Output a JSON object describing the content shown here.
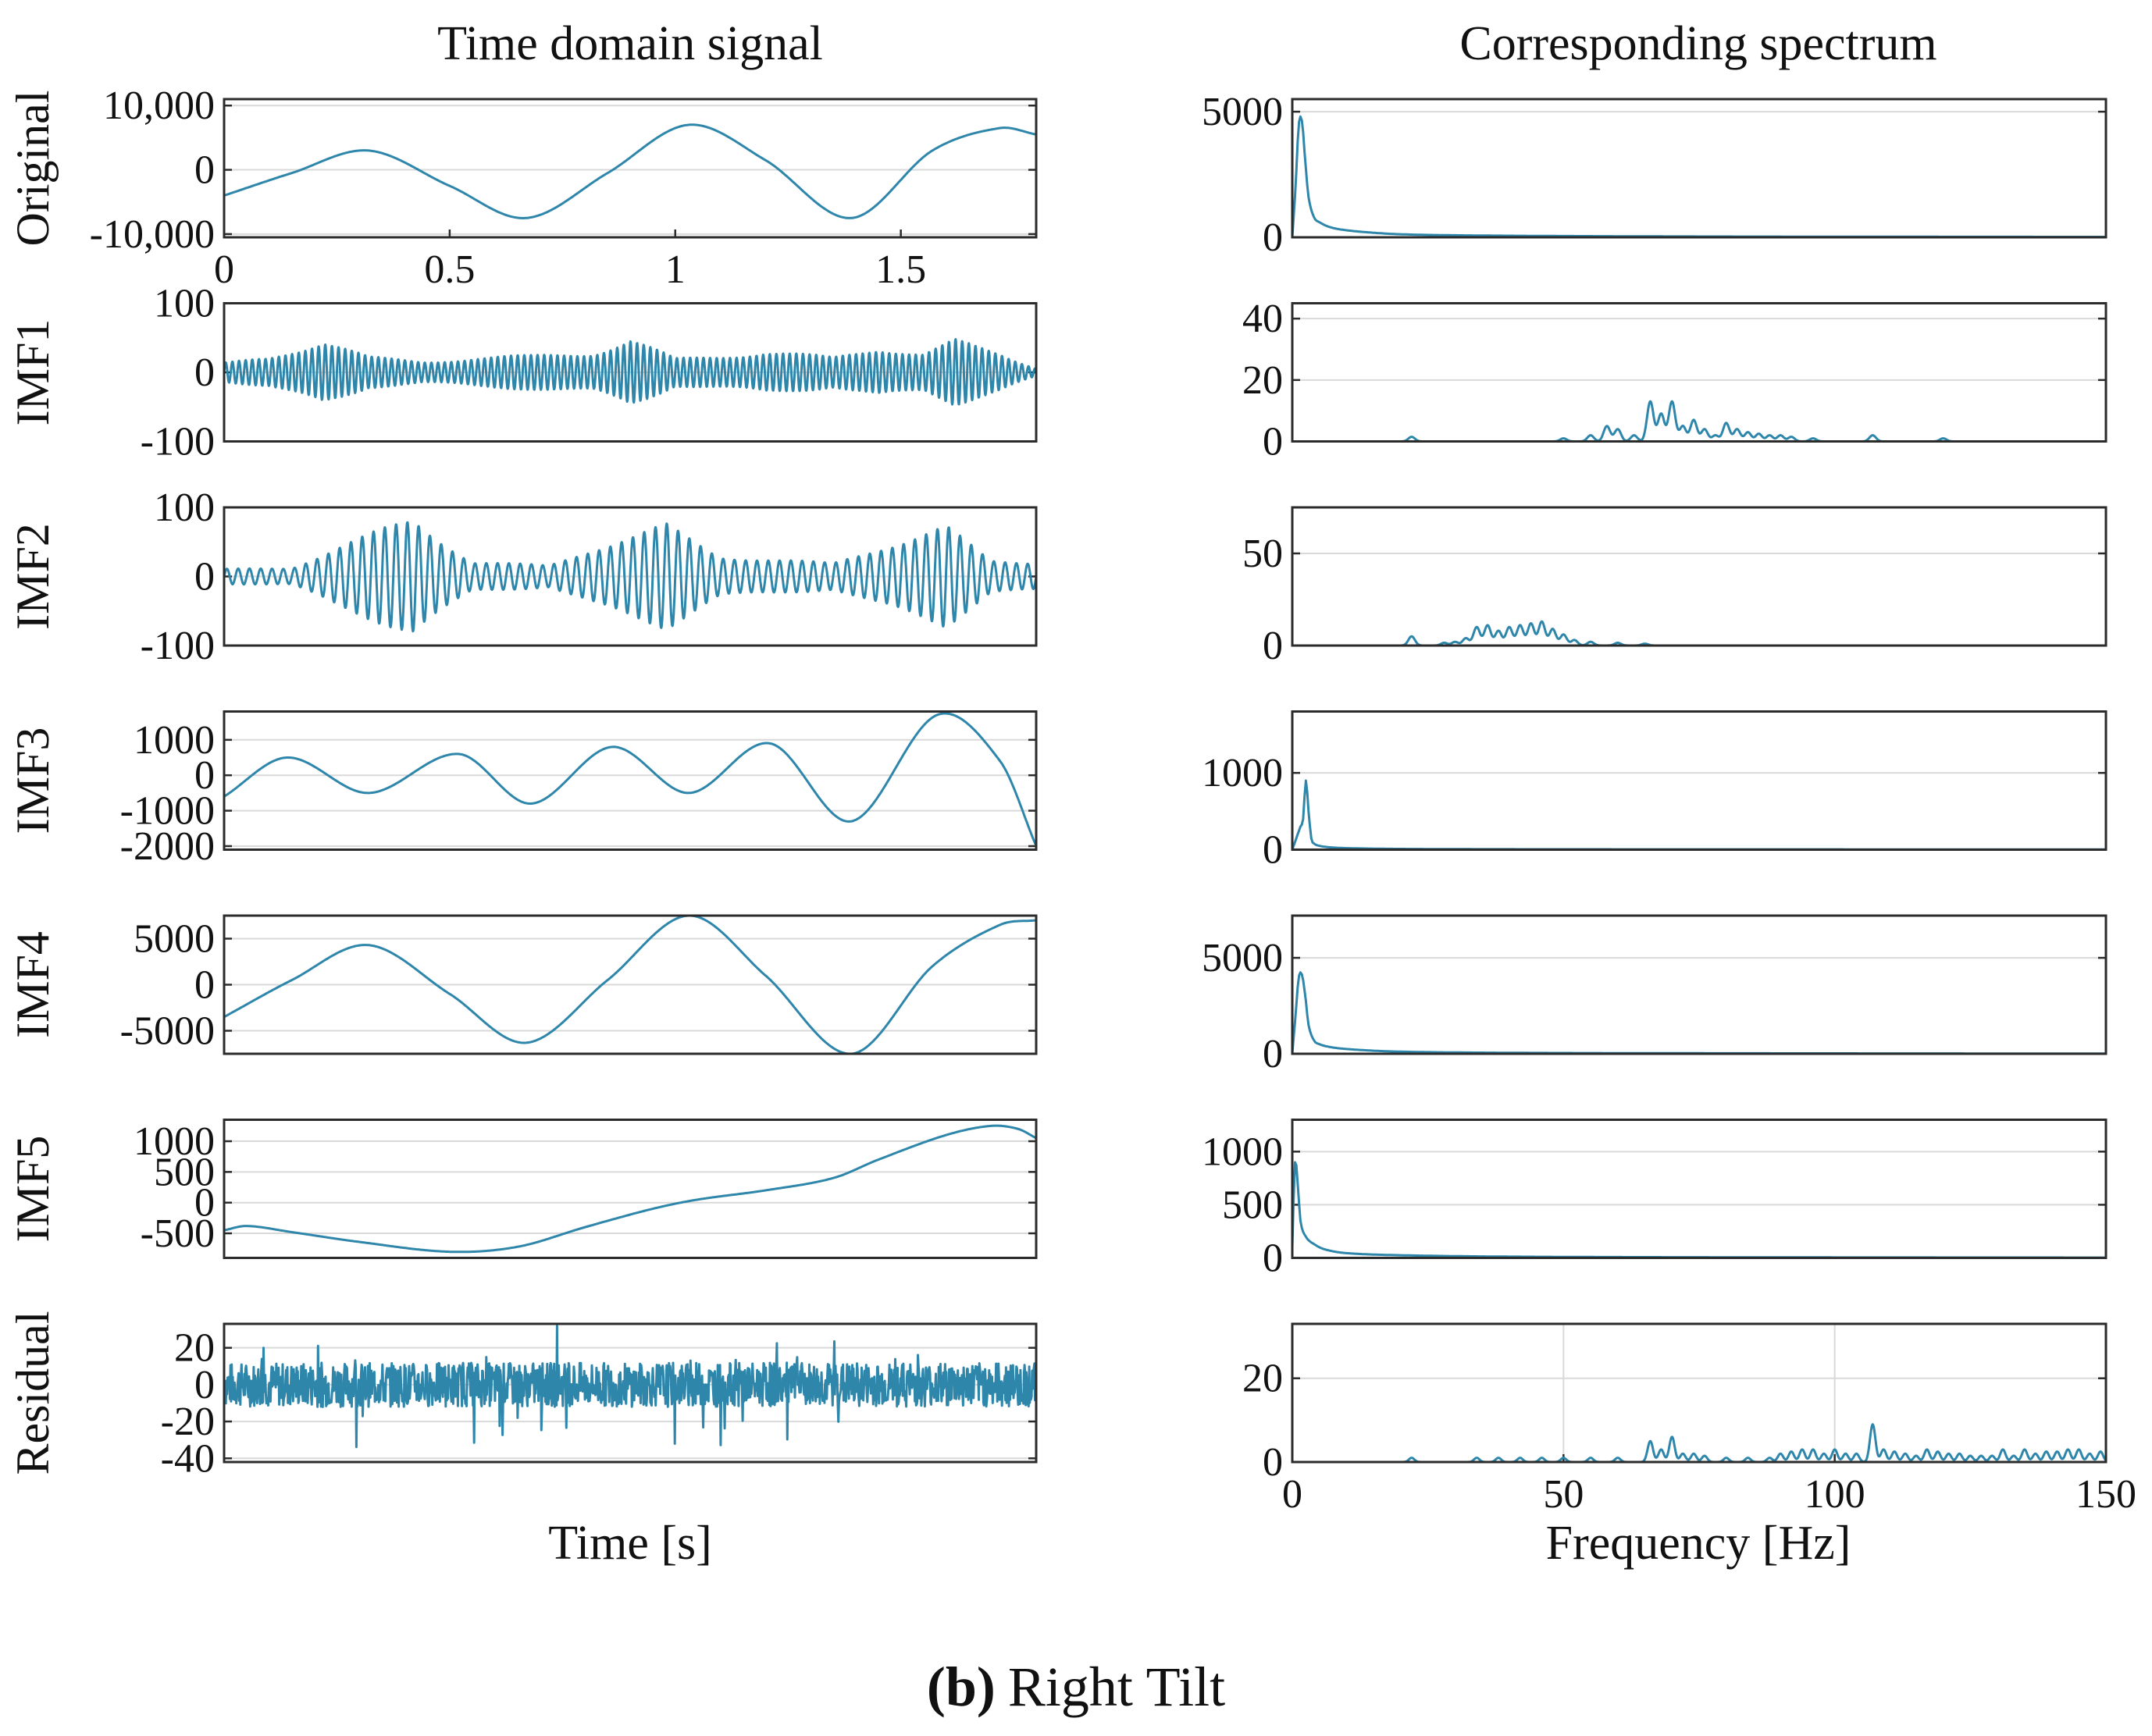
{
  "figure": {
    "left_title": "Time domain signal",
    "right_title": "Corresponding spectrum",
    "left_xlabel": "Time [s]",
    "right_xlabel": "Frequency [Hz]",
    "caption_label": "(b)",
    "caption_text": "Right Tilt",
    "line_color": "#2e86ab"
  },
  "chart_data": [
    {
      "type": "line",
      "panel": "time",
      "ylabel": "Original",
      "xlim": [
        0,
        1.8
      ],
      "ylim": [
        -10500,
        11000
      ],
      "grid": "horizontal",
      "yticks": [
        -10000,
        0,
        10000
      ],
      "ytick_labels": [
        "-10,000",
        "0",
        "10,000"
      ],
      "xticks": [
        0,
        0.5,
        1,
        1.5
      ],
      "xtick_labels": [
        "0",
        "0.5",
        "1",
        "1.5"
      ],
      "x": [
        0,
        0.15,
        0.32,
        0.5,
        0.67,
        0.85,
        1.03,
        1.2,
        1.39,
        1.57,
        1.72,
        1.8
      ],
      "y": [
        -4000,
        -500,
        3000,
        -2500,
        -7500,
        -500,
        7000,
        1500,
        -7500,
        3000,
        6500,
        5500
      ]
    },
    {
      "type": "line",
      "panel": "time",
      "ylabel": "IMF1",
      "xlim": [
        0,
        1.8
      ],
      "ylim": [
        -100,
        100
      ],
      "grid": "horizontal",
      "yticks": [
        -100,
        0,
        100
      ],
      "ytick_labels": [
        "-100",
        "0",
        "100"
      ],
      "signal": {
        "kind": "oscillation",
        "freq": 68,
        "envelope": [
          [
            0,
            12
          ],
          [
            0.1,
            20
          ],
          [
            0.22,
            45
          ],
          [
            0.32,
            20
          ],
          [
            0.44,
            15
          ],
          [
            0.56,
            20
          ],
          [
            0.68,
            22
          ],
          [
            0.82,
            28
          ],
          [
            0.9,
            45
          ],
          [
            1.0,
            18
          ],
          [
            1.2,
            28
          ],
          [
            1.35,
            20
          ],
          [
            1.45,
            35
          ],
          [
            1.55,
            25
          ],
          [
            1.62,
            42
          ],
          [
            1.72,
            26
          ],
          [
            1.8,
            6
          ]
        ],
        "mean": [
          [
            0,
            0
          ],
          [
            1.8,
            0
          ]
        ],
        "noise": 0.15
      }
    },
    {
      "type": "line",
      "panel": "time",
      "ylabel": "IMF2",
      "xlim": [
        0,
        1.8
      ],
      "ylim": [
        -100,
        100
      ],
      "grid": "horizontal",
      "yticks": [
        -100,
        0,
        100
      ],
      "ytick_labels": [
        "-100",
        "0",
        "100"
      ],
      "signal": {
        "kind": "oscillation",
        "freq": 40,
        "envelope": [
          [
            0,
            10
          ],
          [
            0.15,
            12
          ],
          [
            0.25,
            40
          ],
          [
            0.42,
            80
          ],
          [
            0.55,
            20
          ],
          [
            0.72,
            15
          ],
          [
            0.82,
            40
          ],
          [
            0.98,
            70
          ],
          [
            1.1,
            28
          ],
          [
            1.35,
            18
          ],
          [
            1.45,
            40
          ],
          [
            1.6,
            68
          ],
          [
            1.7,
            22
          ],
          [
            1.8,
            20
          ]
        ],
        "mean": [
          [
            0,
            0
          ],
          [
            1.8,
            0
          ]
        ],
        "noise": 0.1
      }
    },
    {
      "type": "line",
      "panel": "time",
      "ylabel": "IMF3",
      "xlim": [
        0,
        1.8
      ],
      "ylim": [
        -2100,
        1800
      ],
      "grid": "horizontal",
      "yticks": [
        -2000,
        -1000,
        0,
        1000
      ],
      "ytick_labels": [
        "-2000",
        "-1000",
        "0",
        "1000"
      ],
      "x": [
        0,
        0.14,
        0.32,
        0.52,
        0.68,
        0.86,
        1.03,
        1.21,
        1.39,
        1.58,
        1.72,
        1.8
      ],
      "y": [
        -600,
        500,
        -500,
        600,
        -800,
        800,
        -500,
        900,
        -1300,
        1700,
        400,
        -2000
      ]
    },
    {
      "type": "line",
      "panel": "time",
      "ylabel": "IMF4",
      "xlim": [
        0,
        1.8
      ],
      "ylim": [
        -7500,
        7500
      ],
      "grid": "horizontal",
      "yticks": [
        -5000,
        0,
        5000
      ],
      "ytick_labels": [
        "-5000",
        "0",
        "5000"
      ],
      "x": [
        0,
        0.15,
        0.32,
        0.5,
        0.67,
        0.85,
        1.03,
        1.2,
        1.39,
        1.57,
        1.72,
        1.8
      ],
      "y": [
        -3500,
        500,
        4300,
        -1000,
        -6300,
        500,
        7500,
        1000,
        -7500,
        2000,
        6500,
        7000
      ]
    },
    {
      "type": "line",
      "panel": "time",
      "ylabel": "IMF5",
      "xlim": [
        0,
        1.8
      ],
      "ylim": [
        -900,
        1350
      ],
      "grid": "horizontal",
      "yticks": [
        -500,
        0,
        500,
        1000
      ],
      "ytick_labels": [
        "-500",
        "0",
        "500",
        "1000"
      ],
      "x": [
        0,
        0.05,
        0.15,
        0.3,
        0.5,
        0.65,
        0.8,
        0.95,
        1.05,
        1.2,
        1.35,
        1.45,
        1.6,
        1.7,
        1.76,
        1.8
      ],
      "y": [
        -450,
        -380,
        -480,
        -640,
        -800,
        -720,
        -400,
        -100,
        50,
        200,
        400,
        700,
        1100,
        1250,
        1200,
        1050
      ]
    },
    {
      "type": "line",
      "panel": "time",
      "ylabel": "Residual",
      "xlim": [
        0,
        1.8
      ],
      "ylim": [
        -42,
        33
      ],
      "grid": "horizontal",
      "yticks": [
        -40,
        -20,
        0,
        20
      ],
      "ytick_labels": [
        "-40",
        "-20",
        "0",
        "20"
      ],
      "signal": {
        "kind": "noise",
        "amp": 12,
        "spikes": 28,
        "spike_amp": 22
      }
    },
    {
      "type": "line",
      "panel": "spectrum",
      "ylabel": "",
      "xlim": [
        0,
        150
      ],
      "ylim": [
        0,
        5500
      ],
      "grid": "horizontal",
      "yticks": [
        0,
        5000
      ],
      "ytick_labels": [
        "0",
        "5000"
      ],
      "x": [
        0,
        0.6,
        1.2,
        1.8,
        2.4,
        3,
        4,
        5,
        7,
        10,
        15,
        20,
        30,
        50,
        80,
        120,
        150
      ],
      "y": [
        0,
        2000,
        4500,
        4600,
        3000,
        1600,
        800,
        600,
        400,
        280,
        180,
        120,
        80,
        50,
        30,
        20,
        15
      ]
    },
    {
      "type": "line",
      "panel": "spectrum",
      "ylabel": "",
      "xlim": [
        0,
        150
      ],
      "ylim": [
        0,
        45
      ],
      "grid": "horizontal",
      "yticks": [
        0,
        20,
        40
      ],
      "ytick_labels": [
        "0",
        "20",
        "40"
      ],
      "peaks": [
        [
          22,
          1.5
        ],
        [
          50,
          1
        ],
        [
          55,
          2
        ],
        [
          58,
          5
        ],
        [
          60,
          4
        ],
        [
          63,
          2
        ],
        [
          66,
          13
        ],
        [
          68,
          9
        ],
        [
          70,
          13
        ],
        [
          72,
          5
        ],
        [
          74,
          7
        ],
        [
          76,
          4
        ],
        [
          78,
          2
        ],
        [
          80,
          6
        ],
        [
          82,
          4
        ],
        [
          84,
          3
        ],
        [
          86,
          2.5
        ],
        [
          88,
          2
        ],
        [
          90,
          2
        ],
        [
          92,
          1.5
        ],
        [
          96,
          1
        ],
        [
          107,
          2
        ],
        [
          120,
          1
        ]
      ],
      "peak_width": 0.6
    },
    {
      "type": "line",
      "panel": "spectrum",
      "ylabel": "",
      "xlim": [
        0,
        150
      ],
      "ylim": [
        0,
        75
      ],
      "grid": "horizontal",
      "yticks": [
        0,
        50
      ],
      "ytick_labels": [
        "0",
        "50"
      ],
      "peaks": [
        [
          22,
          5
        ],
        [
          28,
          1.5
        ],
        [
          30,
          2
        ],
        [
          32,
          4
        ],
        [
          34,
          10
        ],
        [
          36,
          11
        ],
        [
          38,
          8
        ],
        [
          40,
          10
        ],
        [
          42,
          11
        ],
        [
          44,
          12
        ],
        [
          46,
          13
        ],
        [
          48,
          9
        ],
        [
          50,
          6
        ],
        [
          52,
          3
        ],
        [
          55,
          2
        ],
        [
          60,
          1.5
        ],
        [
          65,
          1
        ]
      ],
      "peak_width": 0.6
    },
    {
      "type": "line",
      "panel": "spectrum",
      "ylabel": "",
      "xlim": [
        0,
        150
      ],
      "ylim": [
        0,
        1800
      ],
      "grid": "horizontal",
      "yticks": [
        0,
        1000
      ],
      "ytick_labels": [
        "0",
        "1000"
      ],
      "x": [
        0,
        1,
        1.5,
        2,
        2.5,
        3,
        3.5,
        4,
        5,
        7,
        10,
        20,
        50,
        150
      ],
      "y": [
        0,
        200,
        300,
        400,
        900,
        500,
        150,
        80,
        50,
        30,
        20,
        10,
        5,
        3
      ]
    },
    {
      "type": "line",
      "panel": "spectrum",
      "ylabel": "",
      "xlim": [
        0,
        150
      ],
      "ylim": [
        0,
        7200
      ],
      "grid": "horizontal",
      "yticks": [
        0,
        5000
      ],
      "ytick_labels": [
        "0",
        "5000"
      ],
      "x": [
        0,
        0.6,
        1.2,
        1.8,
        2.4,
        3,
        4,
        5,
        7,
        10,
        15,
        20,
        30,
        50,
        80,
        120,
        150
      ],
      "y": [
        0,
        2000,
        4000,
        4100,
        3000,
        1500,
        700,
        500,
        350,
        250,
        160,
        110,
        70,
        40,
        25,
        15,
        10
      ]
    },
    {
      "type": "line",
      "panel": "spectrum",
      "ylabel": "",
      "xlim": [
        0,
        150
      ],
      "ylim": [
        0,
        1300
      ],
      "grid": "horizontal",
      "yticks": [
        0,
        500,
        1000
      ],
      "ytick_labels": [
        "0",
        "500",
        "1000"
      ],
      "x": [
        0,
        0.5,
        1,
        1.5,
        2.5,
        4,
        6,
        10,
        20,
        40,
        80,
        150
      ],
      "y": [
        100,
        900,
        700,
        350,
        200,
        130,
        80,
        45,
        25,
        12,
        6,
        3
      ]
    },
    {
      "type": "line",
      "panel": "spectrum",
      "ylabel": "",
      "xlim": [
        0,
        150
      ],
      "ylim": [
        0,
        33
      ],
      "grid": "both",
      "yticks": [
        0,
        20
      ],
      "ytick_labels": [
        "0",
        "20"
      ],
      "xticks": [
        0,
        50,
        100,
        150
      ],
      "xtick_labels": [
        "0",
        "50",
        "100",
        "150"
      ],
      "peaks": [
        [
          22,
          1
        ],
        [
          34,
          1
        ],
        [
          38,
          1
        ],
        [
          42,
          1
        ],
        [
          46,
          1
        ],
        [
          50,
          1
        ],
        [
          55,
          1
        ],
        [
          60,
          1
        ],
        [
          66,
          5
        ],
        [
          68,
          3
        ],
        [
          70,
          6
        ],
        [
          72,
          2
        ],
        [
          74,
          2
        ],
        [
          76,
          1.5
        ],
        [
          80,
          1
        ],
        [
          84,
          1
        ],
        [
          88,
          1
        ],
        [
          90,
          2
        ],
        [
          92,
          2.5
        ],
        [
          94,
          3
        ],
        [
          96,
          3
        ],
        [
          98,
          2
        ],
        [
          100,
          3
        ],
        [
          102,
          2
        ],
        [
          104,
          2
        ],
        [
          107,
          9
        ],
        [
          109,
          3
        ],
        [
          111,
          2.5
        ],
        [
          113,
          2
        ],
        [
          115,
          1.5
        ],
        [
          117,
          3
        ],
        [
          119,
          2.5
        ],
        [
          121,
          2
        ],
        [
          123,
          2
        ],
        [
          125,
          1.5
        ],
        [
          127,
          1.5
        ],
        [
          129,
          1.5
        ],
        [
          131,
          3
        ],
        [
          133,
          1.5
        ],
        [
          135,
          3
        ],
        [
          137,
          2
        ],
        [
          139,
          2.5
        ],
        [
          141,
          2.5
        ],
        [
          143,
          3
        ],
        [
          145,
          3
        ],
        [
          147,
          2
        ],
        [
          149,
          2.5
        ]
      ],
      "peak_width": 0.5
    }
  ]
}
